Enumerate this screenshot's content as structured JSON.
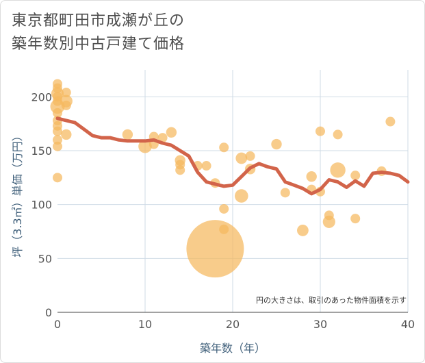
{
  "title_line1": "東京都町田市成瀬が丘の",
  "title_line2": "築年数別中古戸建て価格",
  "chart_data": {
    "type": "scatter",
    "title": "東京都町田市成瀬が丘の築年数別中古戸建て価格",
    "xlabel": "築年数（年）",
    "ylabel": "坪（3.3㎡）単価（万円）",
    "xlim": [
      0,
      40
    ],
    "ylim": [
      0,
      225
    ],
    "xticks": [
      0,
      10,
      20,
      30,
      40
    ],
    "yticks": [
      0,
      50,
      100,
      150,
      200
    ],
    "grid": true,
    "note": "円の大きさは、取引のあった物件面積を示す",
    "colors": {
      "bubble": "#f5b95e",
      "line": "#d2644a",
      "grid": "#cfdbe6"
    },
    "bubbles": [
      {
        "x": 0,
        "y": 212,
        "s": 1
      },
      {
        "x": 0,
        "y": 208,
        "s": 1
      },
      {
        "x": 0,
        "y": 203,
        "s": 1.3
      },
      {
        "x": 0,
        "y": 200,
        "s": 1
      },
      {
        "x": 0,
        "y": 196,
        "s": 1
      },
      {
        "x": 0,
        "y": 191,
        "s": 1.5
      },
      {
        "x": 0,
        "y": 185,
        "s": 1
      },
      {
        "x": 0,
        "y": 178,
        "s": 1
      },
      {
        "x": 0,
        "y": 173,
        "s": 1
      },
      {
        "x": 0,
        "y": 168,
        "s": 1
      },
      {
        "x": 0,
        "y": 160,
        "s": 1
      },
      {
        "x": 0,
        "y": 154,
        "s": 1
      },
      {
        "x": 0,
        "y": 125,
        "s": 1
      },
      {
        "x": 1,
        "y": 204,
        "s": 1
      },
      {
        "x": 1,
        "y": 196,
        "s": 1.3
      },
      {
        "x": 1,
        "y": 192,
        "s": 1
      },
      {
        "x": 1,
        "y": 165,
        "s": 1.1
      },
      {
        "x": 8,
        "y": 165,
        "s": 1.1
      },
      {
        "x": 10,
        "y": 154,
        "s": 1.4
      },
      {
        "x": 11,
        "y": 163,
        "s": 1
      },
      {
        "x": 11,
        "y": 156,
        "s": 1
      },
      {
        "x": 12,
        "y": 162,
        "s": 1
      },
      {
        "x": 13,
        "y": 167,
        "s": 1.1
      },
      {
        "x": 14,
        "y": 141,
        "s": 1.1
      },
      {
        "x": 14,
        "y": 137,
        "s": 1
      },
      {
        "x": 14,
        "y": 132,
        "s": 1
      },
      {
        "x": 16,
        "y": 136,
        "s": 1
      },
      {
        "x": 17,
        "y": 136,
        "s": 1
      },
      {
        "x": 18,
        "y": 120,
        "s": 1
      },
      {
        "x": 18,
        "y": 59,
        "s": 6.0
      },
      {
        "x": 19,
        "y": 153,
        "s": 1
      },
      {
        "x": 19,
        "y": 96,
        "s": 1
      },
      {
        "x": 19,
        "y": 77,
        "s": 1
      },
      {
        "x": 21,
        "y": 143,
        "s": 1.2
      },
      {
        "x": 21,
        "y": 108,
        "s": 1.4
      },
      {
        "x": 22,
        "y": 145,
        "s": 1
      },
      {
        "x": 22,
        "y": 133,
        "s": 1.1
      },
      {
        "x": 25,
        "y": 156,
        "s": 1.1
      },
      {
        "x": 26,
        "y": 111,
        "s": 1
      },
      {
        "x": 28,
        "y": 76,
        "s": 1.2
      },
      {
        "x": 29,
        "y": 126,
        "s": 1.1
      },
      {
        "x": 29,
        "y": 114,
        "s": 1
      },
      {
        "x": 30,
        "y": 168,
        "s": 1
      },
      {
        "x": 30,
        "y": 112,
        "s": 1
      },
      {
        "x": 31,
        "y": 90,
        "s": 1
      },
      {
        "x": 31,
        "y": 84,
        "s": 1.3
      },
      {
        "x": 32,
        "y": 165,
        "s": 1
      },
      {
        "x": 32,
        "y": 132,
        "s": 1.6
      },
      {
        "x": 34,
        "y": 127,
        "s": 1
      },
      {
        "x": 34,
        "y": 87,
        "s": 1
      },
      {
        "x": 37,
        "y": 131,
        "s": 1
      },
      {
        "x": 38,
        "y": 177,
        "s": 1
      }
    ],
    "trend": {
      "x": [
        0,
        1,
        2,
        3,
        4,
        5,
        6,
        7,
        8,
        9,
        10,
        11,
        12,
        13,
        14,
        15,
        16,
        17,
        18,
        19,
        20,
        21,
        22,
        23,
        24,
        25,
        26,
        27,
        28,
        29,
        30,
        31,
        32,
        33,
        34,
        35,
        36,
        37,
        38,
        39,
        40
      ],
      "y": [
        180,
        178,
        176,
        170,
        164,
        162,
        162,
        160,
        159,
        159,
        159,
        160,
        157,
        155,
        150,
        145,
        130,
        121,
        119,
        117,
        118,
        126,
        134,
        138,
        135,
        133,
        121,
        118,
        115,
        110,
        114,
        123,
        121,
        116,
        122,
        117,
        129,
        130,
        129,
        127,
        121
      ]
    }
  }
}
